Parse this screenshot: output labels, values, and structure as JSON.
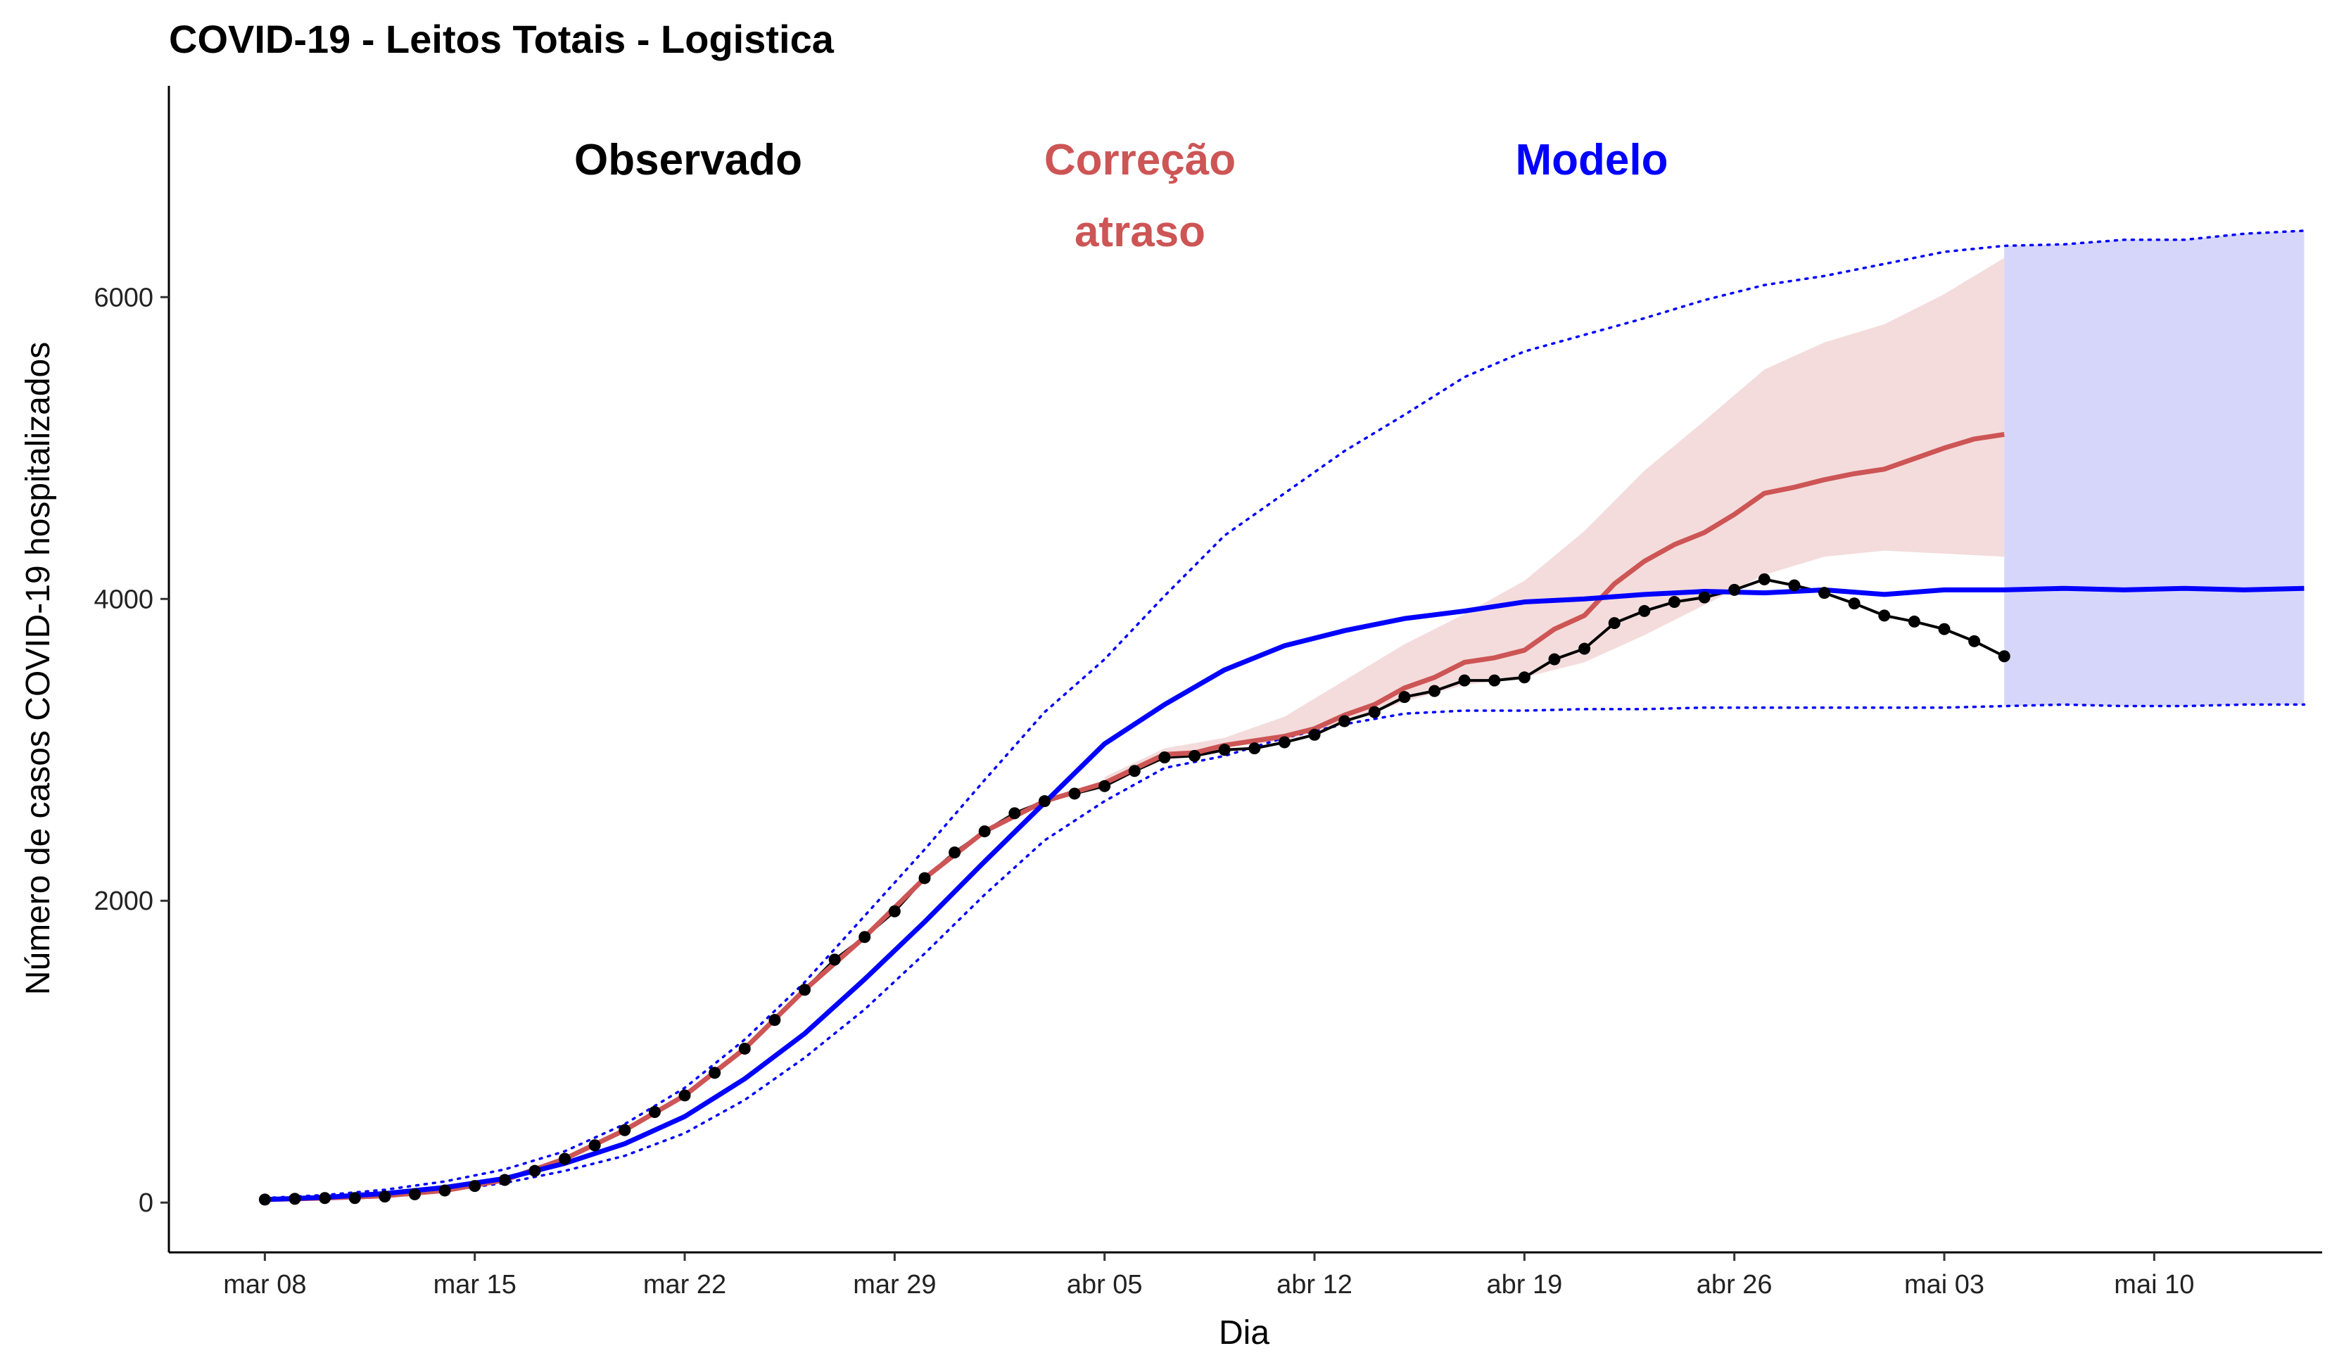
{
  "chart_data": {
    "type": "line",
    "title": "COVID-19 - Leitos Totais - Logistica",
    "xlabel": "Dia",
    "ylabel": "Número de casos COVID-19 hospitalizados",
    "x_tick_labels": [
      "mar 08",
      "mar 15",
      "mar 22",
      "mar 29",
      "abr 05",
      "abr 12",
      "abr 19",
      "abr 26",
      "mai 03",
      "mai 10"
    ],
    "y_tick_labels": [
      "0",
      "2000",
      "4000",
      "6000"
    ],
    "y_ticks": [
      0,
      2000,
      4000,
      6000
    ],
    "ylim": [
      -330,
      7400
    ],
    "xlim_days": [
      -3.2,
      68.6
    ],
    "x_start_date": "mar 08",
    "legend_placement": "top, as colored text labels",
    "legend_labels": [
      {
        "text": "Observado",
        "color": "#000000"
      },
      {
        "text": "Correção\natraso",
        "color": "#CD5555"
      },
      {
        "text": "Modelo",
        "color": "#0000FF"
      }
    ],
    "colors": {
      "observed": "#000000",
      "correction": "#CD5555",
      "correction_band": "#F4DCDC",
      "model": "#0000FF",
      "model_band": "#D6D6FA"
    },
    "series": [
      {
        "name": "Observado",
        "day": [
          0,
          1,
          2,
          3,
          4,
          5,
          6,
          7,
          8,
          9,
          10,
          11,
          12,
          13,
          14,
          15,
          16,
          17,
          18,
          19,
          20,
          21,
          22,
          23,
          24,
          25,
          26,
          27,
          28,
          29,
          30,
          31,
          32,
          33,
          34,
          35,
          36,
          37,
          38,
          39,
          40,
          41,
          42,
          43,
          44,
          45,
          46,
          47,
          48,
          49,
          50,
          51,
          52,
          53,
          54,
          55,
          56,
          57,
          58
        ],
        "values": [
          20,
          25,
          30,
          30,
          40,
          55,
          80,
          110,
          150,
          210,
          290,
          380,
          480,
          600,
          710,
          860,
          1020,
          1210,
          1410,
          1610,
          1760,
          1930,
          2150,
          2320,
          2460,
          2580,
          2660,
          2710,
          2760,
          2860,
          2950,
          2960,
          3000,
          3010,
          3050,
          3100,
          3190,
          3250,
          3350,
          3390,
          3460,
          3460,
          3480,
          3600,
          3670,
          3840,
          3920,
          3980,
          4010,
          4060,
          4130,
          4090,
          4040,
          3970,
          3890,
          3850,
          3800,
          3720,
          3620
        ]
      },
      {
        "name": "Correção atraso",
        "day": [
          0,
          2,
          4,
          6,
          8,
          10,
          12,
          14,
          16,
          18,
          20,
          22,
          24,
          26,
          28,
          30,
          31,
          32,
          33,
          34,
          35,
          36,
          37,
          38,
          39,
          40,
          41,
          42,
          43,
          44,
          45,
          46,
          47,
          48,
          49,
          50,
          51,
          52,
          53,
          54,
          55,
          56,
          57,
          58
        ],
        "values": [
          20,
          30,
          45,
          80,
          150,
          290,
          480,
          710,
          1020,
          1410,
          1760,
          2150,
          2460,
          2660,
          2780,
          2970,
          2980,
          3030,
          3060,
          3090,
          3140,
          3230,
          3300,
          3410,
          3480,
          3580,
          3610,
          3660,
          3800,
          3890,
          4100,
          4250,
          4360,
          4440,
          4560,
          4700,
          4740,
          4790,
          4830,
          4860,
          4930,
          5000,
          5060,
          5090
        ],
        "band_day": [
          28,
          30,
          32,
          34,
          36,
          38,
          40,
          42,
          44,
          46,
          48,
          50,
          52,
          54,
          56,
          58
        ],
        "band_low": [
          2760,
          2940,
          3020,
          3060,
          3180,
          3320,
          3430,
          3480,
          3580,
          3760,
          3960,
          4160,
          4280,
          4320,
          4300,
          4280
        ],
        "band_high": [
          2820,
          3010,
          3080,
          3220,
          3460,
          3700,
          3900,
          4120,
          4450,
          4850,
          5180,
          5520,
          5700,
          5820,
          6020,
          6260
        ]
      },
      {
        "name": "Modelo",
        "day": [
          0,
          2,
          4,
          6,
          8,
          10,
          12,
          14,
          16,
          18,
          20,
          22,
          24,
          26,
          28,
          30,
          32,
          34,
          36,
          38,
          40,
          42,
          44,
          46,
          48,
          50,
          52,
          54,
          56,
          58,
          60,
          62,
          64,
          66,
          68
        ],
        "values": [
          20,
          35,
          60,
          100,
          160,
          260,
          390,
          570,
          820,
          1120,
          1480,
          1860,
          2260,
          2650,
          3040,
          3300,
          3530,
          3690,
          3790,
          3870,
          3920,
          3980,
          4000,
          4030,
          4050,
          4040,
          4060,
          4030,
          4060,
          4060,
          4070,
          4060,
          4070,
          4060,
          4070
        ],
        "band_day": [
          0,
          2,
          4,
          6,
          8,
          10,
          12,
          14,
          16,
          18,
          20,
          22,
          24,
          26,
          28,
          30,
          32,
          34,
          36,
          38,
          40,
          42,
          44,
          46,
          48,
          50,
          52,
          54,
          56,
          58,
          60,
          62,
          64,
          66,
          68
        ],
        "band_low": [
          15,
          25,
          45,
          80,
          130,
          210,
          310,
          460,
          680,
          960,
          1280,
          1650,
          2040,
          2400,
          2660,
          2880,
          2960,
          3080,
          3170,
          3240,
          3260,
          3260,
          3270,
          3270,
          3280,
          3280,
          3280,
          3280,
          3280,
          3290,
          3300,
          3290,
          3290,
          3300,
          3300
        ],
        "band_high": [
          30,
          50,
          85,
          140,
          220,
          340,
          520,
          760,
          1080,
          1460,
          1900,
          2340,
          2800,
          3250,
          3600,
          4020,
          4420,
          4700,
          4980,
          5220,
          5470,
          5640,
          5750,
          5860,
          5980,
          6080,
          6140,
          6220,
          6300,
          6340,
          6350,
          6380,
          6380,
          6420,
          6440
        ],
        "forecast_band_from_day": 58
      }
    ]
  }
}
